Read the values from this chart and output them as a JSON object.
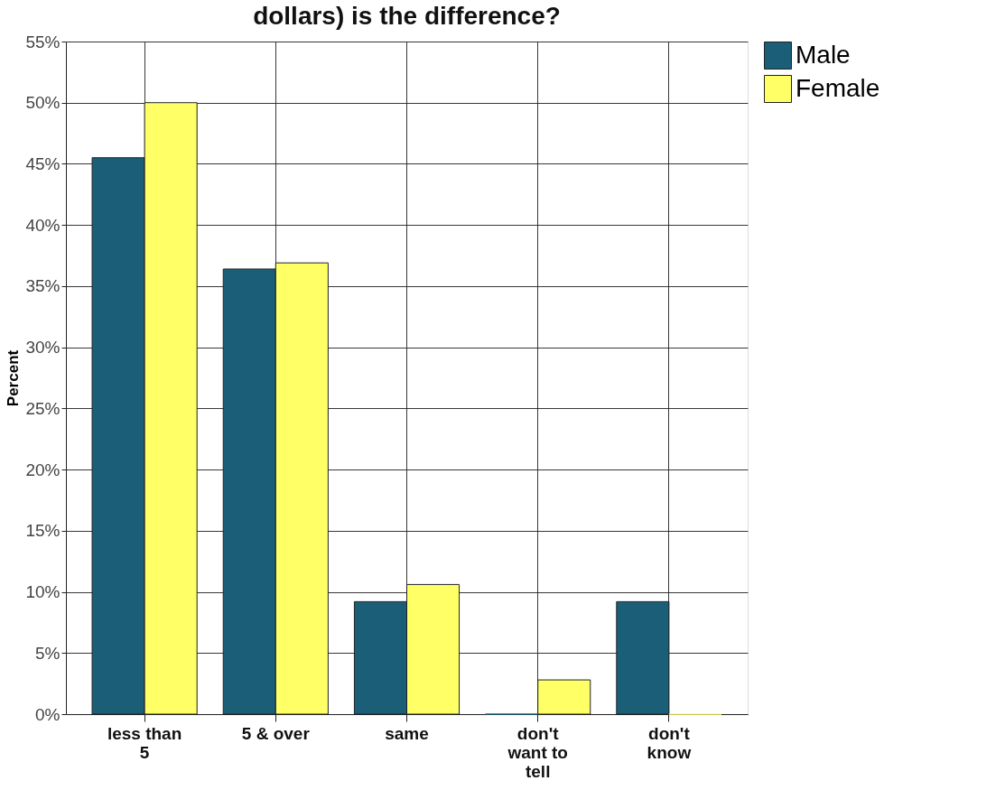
{
  "chart_data": {
    "type": "bar",
    "title": "dollars) is the difference?",
    "ylabel": "Percent",
    "categories": [
      "less than 5",
      "5 & over",
      "same",
      "don't want to tell",
      "don't know"
    ],
    "series": [
      {
        "name": "Male",
        "color": "#1b5e78",
        "values": [
          45.5,
          36.4,
          9.2,
          0,
          9.2
        ]
      },
      {
        "name": "Female",
        "color": "#ffff66",
        "values": [
          50.0,
          36.9,
          10.6,
          2.8,
          0
        ]
      }
    ],
    "ylim": [
      0,
      55
    ],
    "yticks": [
      {
        "value": 0,
        "label": "0%"
      },
      {
        "value": 5,
        "label": "5%"
      },
      {
        "value": 10,
        "label": "10%"
      },
      {
        "value": 15,
        "label": "15%"
      },
      {
        "value": 20,
        "label": "20%"
      },
      {
        "value": 25,
        "label": "25%"
      },
      {
        "value": 30,
        "label": "30%"
      },
      {
        "value": 35,
        "label": "35%"
      },
      {
        "value": 40,
        "label": "40%"
      },
      {
        "value": 45,
        "label": "45%"
      },
      {
        "value": 50,
        "label": "50%"
      },
      {
        "value": 55,
        "label": "55%"
      }
    ],
    "grid": true,
    "legend": "top right"
  }
}
